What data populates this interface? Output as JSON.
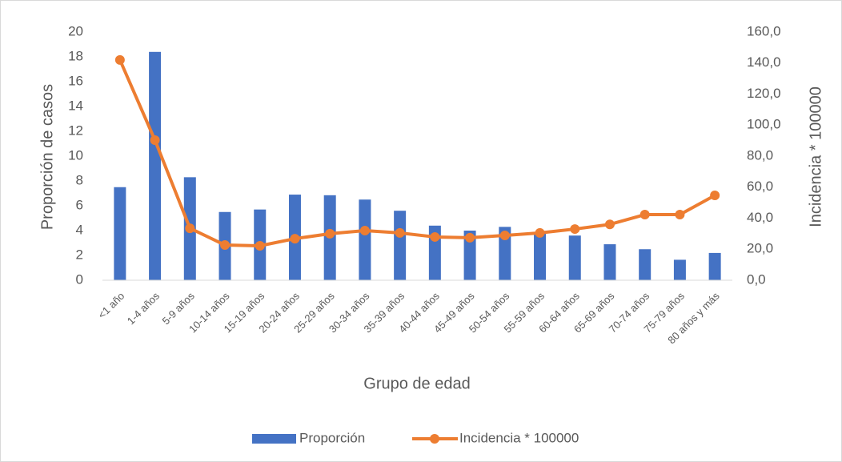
{
  "chart_data": {
    "type": "bar",
    "y_label": "Proporción de casos",
    "y2_label": "Incidencia * 100000",
    "x_label": "Grupo de edad",
    "categories": [
      "<1 año",
      "1-4 años",
      "5-9 años",
      "10-14 años",
      "15-19 años",
      "20-24 años",
      "25-29 años",
      "30-34 años",
      "35-39 años",
      "40-44 años",
      "45-49 años",
      "50-54 años",
      "55-59 años",
      "60-64 años",
      "65-69 años",
      "70-74 años",
      "75-79 años",
      "80 años y más"
    ],
    "series": [
      {
        "name": "Proporción",
        "type": "bar",
        "color": "#4472c4",
        "values": [
          7.5,
          18.4,
          8.3,
          5.5,
          5.7,
          6.9,
          6.85,
          6.5,
          5.6,
          4.4,
          4.0,
          4.3,
          3.9,
          3.6,
          2.9,
          2.5,
          1.65,
          2.2
        ]
      },
      {
        "name": "Incidencia * 100000",
        "type": "line",
        "axis": "y2",
        "color": "#ed7d31",
        "values": [
          142,
          90.3,
          33.5,
          22.7,
          22.2,
          26.8,
          30,
          32,
          30.5,
          27.9,
          27.4,
          28.9,
          30.5,
          33,
          36,
          42.3,
          42.3,
          54.7
        ]
      }
    ],
    "ylim": [
      0,
      20
    ],
    "yticks": [
      0,
      2,
      4,
      6,
      8,
      10,
      12,
      14,
      16,
      18,
      20
    ],
    "y2lim": [
      0,
      160
    ],
    "y2ticks": [
      {
        "value": 0,
        "label": "0,0"
      },
      {
        "value": 20,
        "label": "20,0"
      },
      {
        "value": 40,
        "label": "40,0"
      },
      {
        "value": 60,
        "label": "60,0"
      },
      {
        "value": 80,
        "label": "80,0"
      },
      {
        "value": 100,
        "label": "100,0"
      },
      {
        "value": 120,
        "label": "120,0"
      },
      {
        "value": 140,
        "label": "140,0"
      },
      {
        "value": 160,
        "label": "160,0"
      }
    ],
    "legend": "bottom"
  }
}
